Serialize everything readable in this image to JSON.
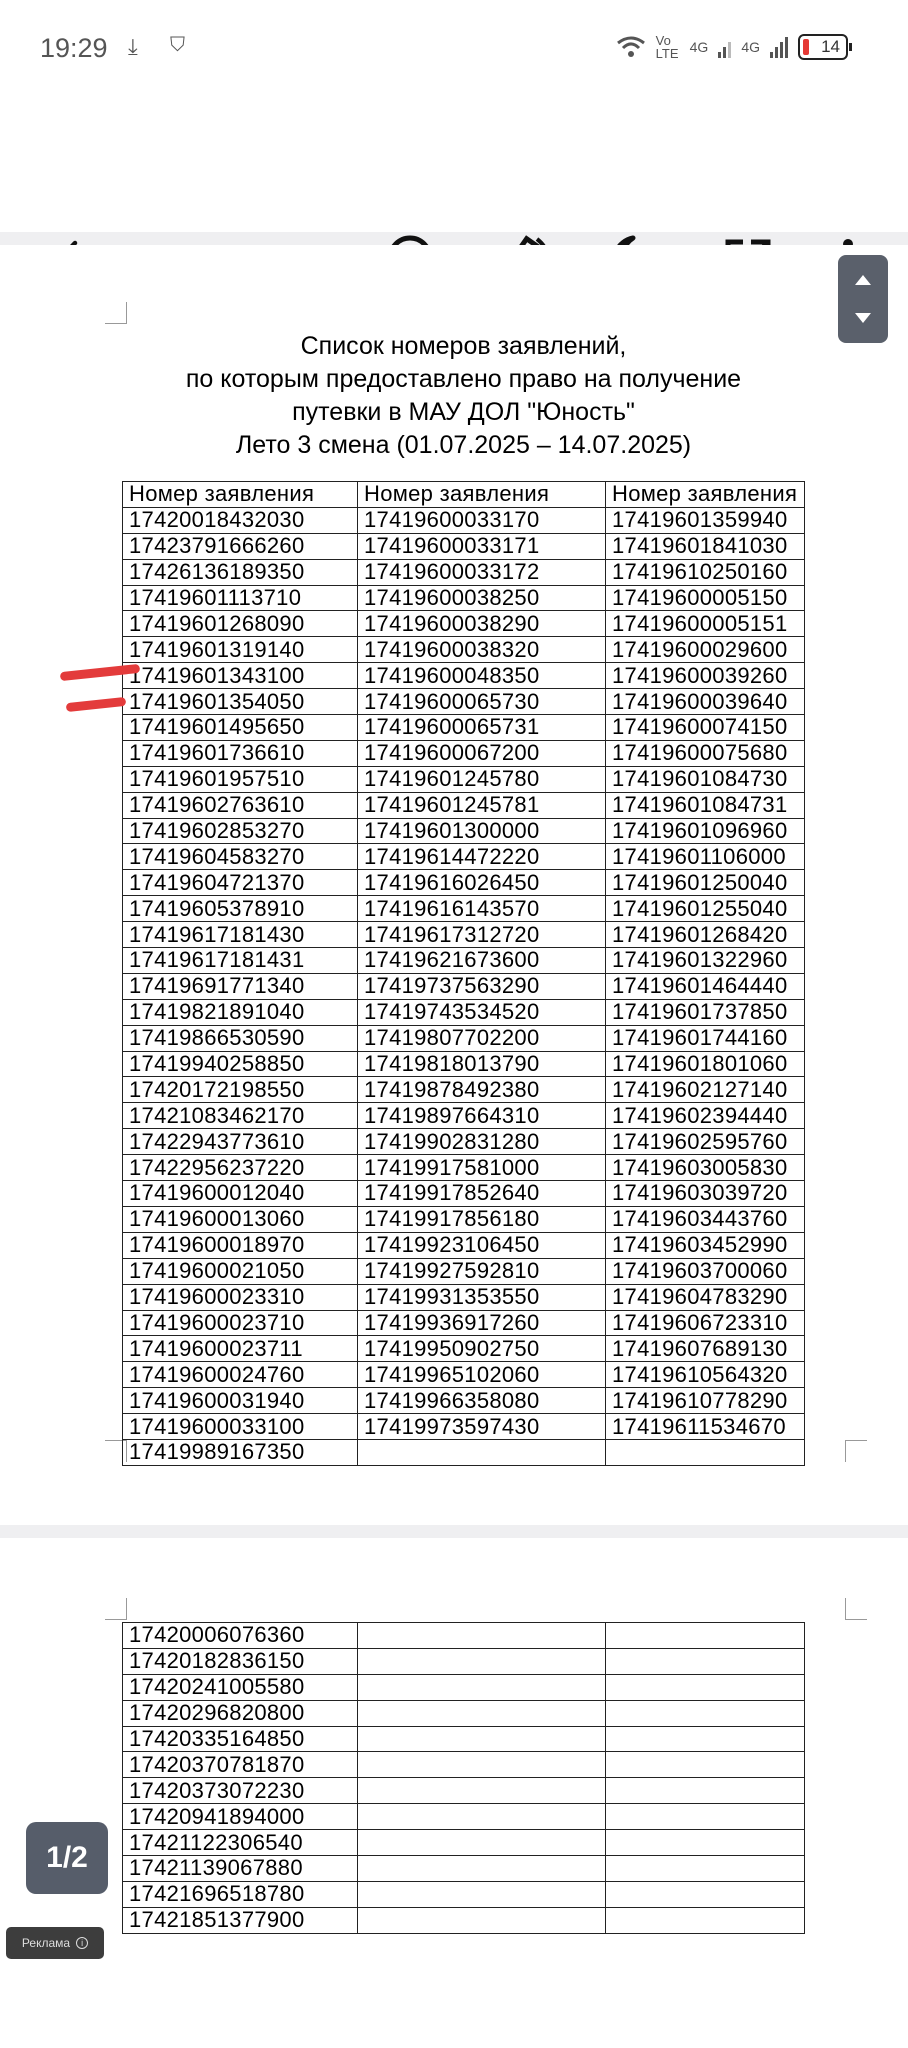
{
  "status_bar": {
    "time": "19:29",
    "network_1": "Vo LTE",
    "network_2": "4G",
    "network_3": "4G",
    "battery": "14",
    "battery_color": "#e53935"
  },
  "toolbar": {
    "icons": [
      "back-icon",
      "text-search-icon",
      "rotate-screen-icon",
      "night-mode-icon",
      "open-external-icon",
      "more-vert-icon"
    ]
  },
  "document": {
    "title_lines": [
      "Список номеров заявлений,",
      "по которым предоставлено право на получение",
      "путевки в МАУ ДОЛ \"Юность\"",
      "Лето 3 смена (01.07.2025 – 14.07.2025)"
    ],
    "table_headers": [
      "Номер заявления",
      "Номер заявления",
      "Номер заявления"
    ],
    "page1_rows": [
      [
        "17420018432030",
        "17419600033170",
        "17419601359940"
      ],
      [
        "17423791666260",
        "17419600033171",
        "17419601841030"
      ],
      [
        "17426136189350",
        "17419600033172",
        "17419610250160"
      ],
      [
        "17419601113710",
        "17419600038250",
        "17419600005150"
      ],
      [
        "17419601268090",
        "17419600038290",
        "17419600005151"
      ],
      [
        "17419601319140",
        "17419600038320",
        "17419600029600"
      ],
      [
        "17419601343100",
        "17419600048350",
        "17419600039260"
      ],
      [
        "17419601354050",
        "17419600065730",
        "17419600039640"
      ],
      [
        "17419601495650",
        "17419600065731",
        "17419600074150"
      ],
      [
        "17419601736610",
        "17419600067200",
        "17419600075680"
      ],
      [
        "17419601957510",
        "17419601245780",
        "17419601084730"
      ],
      [
        "17419602763610",
        "17419601245781",
        "17419601084731"
      ],
      [
        "17419602853270",
        "17419601300000",
        "17419601096960"
      ],
      [
        "17419604583270",
        "17419614472220",
        "17419601106000"
      ],
      [
        "17419604721370",
        "17419616026450",
        "17419601250040"
      ],
      [
        "17419605378910",
        "17419616143570",
        "17419601255040"
      ],
      [
        "17419617181430",
        "17419617312720",
        "17419601268420"
      ],
      [
        "17419617181431",
        "17419621673600",
        "17419601322960"
      ],
      [
        "17419691771340",
        "17419737563290",
        "17419601464440"
      ],
      [
        "17419821891040",
        "17419743534520",
        "17419601737850"
      ],
      [
        "17419866530590",
        "17419807702200",
        "17419601744160"
      ],
      [
        "17419940258850",
        "17419818013790",
        "17419601801060"
      ],
      [
        "17420172198550",
        "17419878492380",
        "17419602127140"
      ],
      [
        "17421083462170",
        "17419897664310",
        "17419602394440"
      ],
      [
        "17422943773610",
        "17419902831280",
        "17419602595760"
      ],
      [
        "17422956237220",
        "17419917581000",
        "17419603005830"
      ],
      [
        "17419600012040",
        "17419917852640",
        "17419603039720"
      ],
      [
        "17419600013060",
        "17419917856180",
        "17419603443760"
      ],
      [
        "17419600018970",
        "17419923106450",
        "17419603452990"
      ],
      [
        "17419600021050",
        "17419927592810",
        "17419603700060"
      ],
      [
        "17419600023310",
        "17419931353550",
        "17419604783290"
      ],
      [
        "17419600023710",
        "17419936917260",
        "17419606723310"
      ],
      [
        "17419600023711",
        "17419950902750",
        "17419607689130"
      ],
      [
        "17419600024760",
        "17419965102060",
        "17419610564320"
      ],
      [
        "17419600031940",
        "17419966358080",
        "17419610778290"
      ],
      [
        "17419600033100",
        "17419973597430",
        "17419611534670"
      ],
      [
        "17419989167350",
        "",
        ""
      ]
    ],
    "page2_rows": [
      [
        "17420006076360",
        "",
        ""
      ],
      [
        "17420182836150",
        "",
        ""
      ],
      [
        "17420241005580",
        "",
        ""
      ],
      [
        "17420296820800",
        "",
        ""
      ],
      [
        "17420335164850",
        "",
        ""
      ],
      [
        "17420370781870",
        "",
        ""
      ],
      [
        "17420373072230",
        "",
        ""
      ],
      [
        "17420941894000",
        "",
        ""
      ],
      [
        "17421122306540",
        "",
        ""
      ],
      [
        "17421139067880",
        "",
        ""
      ],
      [
        "17421696518780",
        "",
        ""
      ],
      [
        "17421851377900",
        "",
        ""
      ]
    ],
    "annotation_color": "#e33b3b"
  },
  "page_indicator": "1/2",
  "ad_label": "Реклама"
}
